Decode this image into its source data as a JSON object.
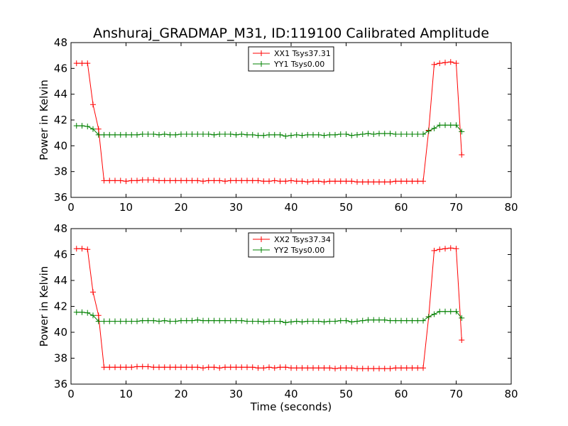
{
  "title": "Anshuraj_GRADMAP_M31, ID:119100 Calibrated Amplitude",
  "chart_data": [
    {
      "type": "line",
      "ylabel": "Power in Kelvin",
      "xlabel": "",
      "xlim": [
        0,
        80
      ],
      "ylim": [
        36,
        48
      ],
      "xticks": [
        "0",
        "10",
        "20",
        "30",
        "40",
        "50",
        "60",
        "70",
        "80"
      ],
      "yticks": [
        "36",
        "38",
        "40",
        "42",
        "44",
        "46",
        "48"
      ],
      "grid": false,
      "legend_position": "top-center",
      "x": [
        1,
        2,
        3,
        4,
        5,
        6,
        7,
        8,
        9,
        10,
        11,
        12,
        13,
        14,
        15,
        16,
        17,
        18,
        19,
        20,
        21,
        22,
        23,
        24,
        25,
        26,
        27,
        28,
        29,
        30,
        31,
        32,
        33,
        34,
        35,
        36,
        37,
        38,
        39,
        40,
        41,
        42,
        43,
        44,
        45,
        46,
        47,
        48,
        49,
        50,
        51,
        52,
        53,
        54,
        55,
        56,
        57,
        58,
        59,
        60,
        61,
        62,
        63,
        64,
        65,
        66,
        67,
        68,
        69,
        70,
        71
      ],
      "series": [
        {
          "name": "XX1 Tsys37.31",
          "color": "#ff0000",
          "values": [
            46.4,
            46.4,
            46.4,
            43.2,
            41.3,
            37.3,
            37.3,
            37.3,
            37.3,
            37.25,
            37.3,
            37.3,
            37.35,
            37.35,
            37.35,
            37.3,
            37.3,
            37.3,
            37.3,
            37.3,
            37.3,
            37.3,
            37.3,
            37.25,
            37.3,
            37.3,
            37.3,
            37.25,
            37.3,
            37.3,
            37.3,
            37.3,
            37.3,
            37.3,
            37.25,
            37.25,
            37.3,
            37.25,
            37.25,
            37.3,
            37.25,
            37.25,
            37.2,
            37.25,
            37.25,
            37.2,
            37.25,
            37.25,
            37.25,
            37.25,
            37.25,
            37.2,
            37.2,
            37.2,
            37.2,
            37.2,
            37.2,
            37.2,
            37.25,
            37.25,
            37.25,
            37.25,
            37.25,
            37.25,
            41.2,
            46.3,
            46.4,
            46.45,
            46.5,
            46.4,
            39.3
          ]
        },
        {
          "name": "YY1 Tsys0.00",
          "color": "#008000",
          "values": [
            41.55,
            41.55,
            41.5,
            41.3,
            40.85,
            40.85,
            40.85,
            40.85,
            40.85,
            40.85,
            40.85,
            40.85,
            40.9,
            40.9,
            40.9,
            40.85,
            40.9,
            40.85,
            40.85,
            40.9,
            40.9,
            40.9,
            40.9,
            40.9,
            40.9,
            40.85,
            40.9,
            40.9,
            40.9,
            40.85,
            40.9,
            40.85,
            40.85,
            40.8,
            40.8,
            40.85,
            40.85,
            40.85,
            40.75,
            40.8,
            40.85,
            40.8,
            40.85,
            40.85,
            40.85,
            40.8,
            40.85,
            40.85,
            40.9,
            40.9,
            40.8,
            40.85,
            40.9,
            40.95,
            40.9,
            40.95,
            40.95,
            40.95,
            40.9,
            40.9,
            40.9,
            40.9,
            40.9,
            40.9,
            41.15,
            41.35,
            41.6,
            41.6,
            41.6,
            41.6,
            41.1
          ]
        }
      ]
    },
    {
      "type": "line",
      "ylabel": "Power in Kelvin",
      "xlabel": "Time (seconds)",
      "xlim": [
        0,
        80
      ],
      "ylim": [
        36,
        48
      ],
      "xticks": [
        "0",
        "10",
        "20",
        "30",
        "40",
        "50",
        "60",
        "70",
        "80"
      ],
      "yticks": [
        "36",
        "38",
        "40",
        "42",
        "44",
        "46",
        "48"
      ],
      "grid": false,
      "legend_position": "top-center",
      "x": [
        1,
        2,
        3,
        4,
        5,
        6,
        7,
        8,
        9,
        10,
        11,
        12,
        13,
        14,
        15,
        16,
        17,
        18,
        19,
        20,
        21,
        22,
        23,
        24,
        25,
        26,
        27,
        28,
        29,
        30,
        31,
        32,
        33,
        34,
        35,
        36,
        37,
        38,
        39,
        40,
        41,
        42,
        43,
        44,
        45,
        46,
        47,
        48,
        49,
        50,
        51,
        52,
        53,
        54,
        55,
        56,
        57,
        58,
        59,
        60,
        61,
        62,
        63,
        64,
        65,
        66,
        67,
        68,
        69,
        70,
        71
      ],
      "series": [
        {
          "name": "XX2 Tsys37.34",
          "color": "#ff0000",
          "values": [
            46.45,
            46.45,
            46.4,
            43.1,
            41.3,
            37.3,
            37.3,
            37.3,
            37.3,
            37.3,
            37.3,
            37.35,
            37.35,
            37.35,
            37.3,
            37.3,
            37.3,
            37.3,
            37.3,
            37.3,
            37.3,
            37.3,
            37.3,
            37.25,
            37.3,
            37.3,
            37.25,
            37.3,
            37.3,
            37.3,
            37.3,
            37.3,
            37.3,
            37.25,
            37.25,
            37.3,
            37.25,
            37.3,
            37.3,
            37.25,
            37.25,
            37.25,
            37.25,
            37.25,
            37.25,
            37.25,
            37.25,
            37.2,
            37.25,
            37.25,
            37.25,
            37.2,
            37.2,
            37.2,
            37.2,
            37.2,
            37.2,
            37.2,
            37.25,
            37.25,
            37.25,
            37.25,
            37.25,
            37.25,
            41.2,
            46.3,
            46.4,
            46.45,
            46.5,
            46.45,
            39.4
          ]
        },
        {
          "name": "YY2 Tsys0.00",
          "color": "#008000",
          "values": [
            41.55,
            41.55,
            41.5,
            41.3,
            40.85,
            40.85,
            40.85,
            40.85,
            40.85,
            40.85,
            40.85,
            40.85,
            40.9,
            40.9,
            40.9,
            40.85,
            40.9,
            40.85,
            40.85,
            40.9,
            40.9,
            40.9,
            40.95,
            40.9,
            40.9,
            40.9,
            40.9,
            40.9,
            40.9,
            40.9,
            40.9,
            40.85,
            40.85,
            40.85,
            40.8,
            40.85,
            40.85,
            40.85,
            40.75,
            40.8,
            40.85,
            40.8,
            40.85,
            40.85,
            40.85,
            40.8,
            40.85,
            40.85,
            40.9,
            40.9,
            40.8,
            40.85,
            40.9,
            40.95,
            40.95,
            40.95,
            40.95,
            40.9,
            40.9,
            40.9,
            40.9,
            40.9,
            40.9,
            40.9,
            41.2,
            41.4,
            41.6,
            41.6,
            41.6,
            41.6,
            41.1
          ]
        }
      ]
    }
  ]
}
